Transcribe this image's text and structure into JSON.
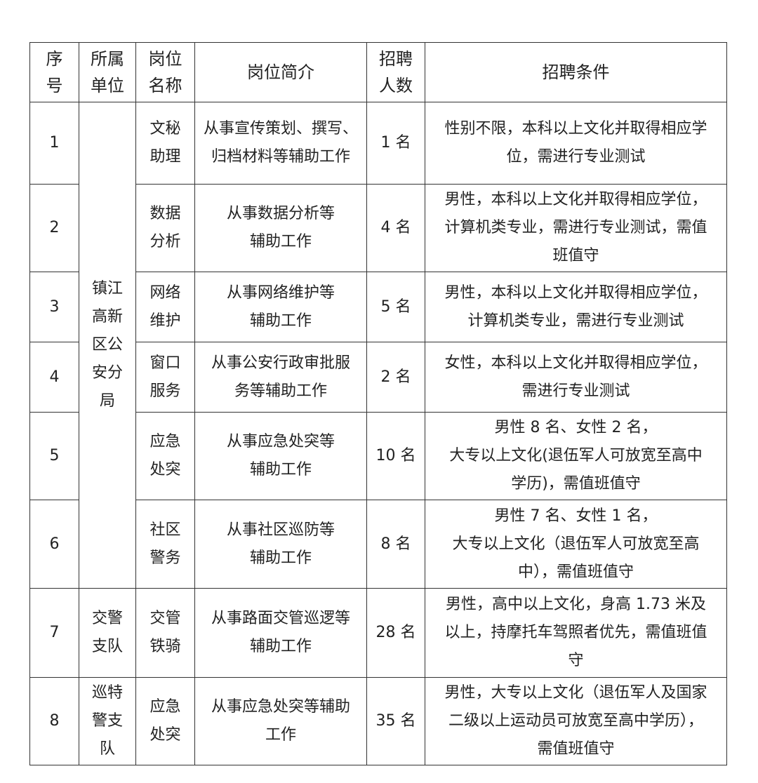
{
  "headers": [
    "序\n号",
    "所属\n单位",
    "岗位\n名称",
    "岗位简介",
    "招聘\n人数",
    "招聘条件"
  ],
  "units": {
    "a": "镇江\n高新\n区公\n安分\n局",
    "b": "交警\n支队",
    "c": "巡特\n警支\n队"
  },
  "rows": [
    {
      "no": "1",
      "post": "文秘\n助理",
      "desc": "从事宣传策划、撰写、\n归档材料等辅助工作",
      "count": "1 名",
      "req": "性别不限，本科以上文化并取得相应学\n位，需进行专业测试"
    },
    {
      "no": "2",
      "post": "数据\n分析",
      "desc": "从事数据分析等\n辅助工作",
      "count": "4 名",
      "req": "男性，本科以上文化并取得相应学位，\n计算机类专业，需进行专业测试，需值\n班值守"
    },
    {
      "no": "3",
      "post": "网络\n维护",
      "desc": "从事网络维护等\n辅助工作",
      "count": "5 名",
      "req": "男性，本科以上文化并取得相应学位，\n计算机类专业，需进行专业测试"
    },
    {
      "no": "4",
      "post": "窗口\n服务",
      "desc": "从事公安行政审批服\n务等辅助工作",
      "count": "2 名",
      "req": "女性，本科以上文化并取得相应学位，\n需进行专业测试"
    },
    {
      "no": "5",
      "post": "应急\n处突",
      "desc": "从事应急处突等\n辅助工作",
      "count": "10 名",
      "req": "男性 8 名、女性 2 名，\n大专以上文化(退伍军人可放宽至高中\n学历)，需值班值守"
    },
    {
      "no": "6",
      "post": "社区\n警务",
      "desc": "从事社区巡防等\n辅助工作",
      "count": "8 名",
      "req": "男性 7 名、女性 1 名，\n大专以上文化（退伍军人可放宽至高\n中），需值班值守"
    },
    {
      "no": "7",
      "post": "交管\n铁骑",
      "desc": "从事路面交管巡逻等\n辅助工作",
      "count": "28 名",
      "req": "男性，高中以上文化，身高 1.73 米及\n以上，持摩托车驾照者优先，需值班值\n守"
    },
    {
      "no": "8",
      "post": "应急\n处突",
      "desc": "从事应急处突等辅助\n工作",
      "count": "35 名",
      "req": "男性，大专以上文化（退伍军人及国家\n二级以上运动员可放宽至高中学历），\n需值班值守"
    }
  ]
}
